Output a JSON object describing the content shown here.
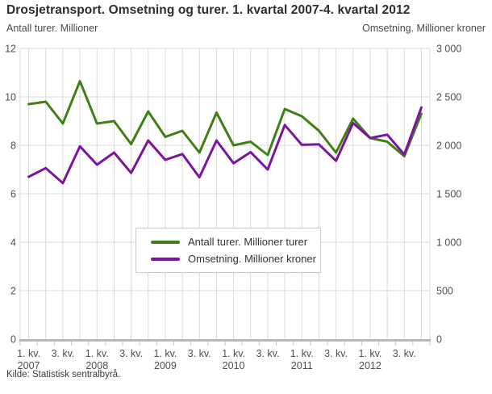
{
  "page": {
    "source": "Kilde: Statistisk sentralbyrå."
  },
  "chart_data": {
    "type": "line",
    "title": "Drosjetransport. Omsetning og turer. 1. kvartal 2007-4. kvartal 2012",
    "grid": true,
    "legend_position": "bottom-center-inside",
    "left_axis": {
      "label": "Antall turer. Millioner",
      "min": 0,
      "max": 12,
      "tick_step": 2,
      "ticks": [
        "12",
        "10",
        "8",
        "6",
        "4",
        "2",
        "0"
      ]
    },
    "right_axis": {
      "label": "Omsetning. Millioner kroner",
      "min": 0,
      "max": 3000,
      "tick_step": 500,
      "ticks": [
        "3 000",
        "2 500",
        "2 000",
        "1 500",
        "1 000",
        "500",
        "0"
      ]
    },
    "categories": [
      "1. kv. 2007",
      "2. kv. 2007",
      "3. kv. 2007",
      "4. kv. 2007",
      "1. kv. 2008",
      "2. kv. 2008",
      "3. kv. 2008",
      "4. kv. 2008",
      "1. kv. 2009",
      "2. kv. 2009",
      "3. kv. 2009",
      "4. kv. 2009",
      "1. kv. 2010",
      "2. kv. 2010",
      "3. kv. 2010",
      "4. kv. 2010",
      "1. kv. 2011",
      "2. kv. 2011",
      "3. kv. 2011",
      "4. kv. 2011",
      "1. kv. 2012",
      "2. kv. 2012",
      "3. kv. 2012",
      "4. kv. 2012"
    ],
    "x_labels": [
      {
        "quarter": "1. kv.",
        "year": "2007"
      },
      {
        "quarter": "3. kv.",
        "year": ""
      },
      {
        "quarter": "1. kv.",
        "year": "2008"
      },
      {
        "quarter": "3. kv.",
        "year": ""
      },
      {
        "quarter": "1. kv.",
        "year": "2009"
      },
      {
        "quarter": "3. kv.",
        "year": ""
      },
      {
        "quarter": "1. kv.",
        "year": "2010"
      },
      {
        "quarter": "3. kv.",
        "year": ""
      },
      {
        "quarter": "1. kv.",
        "year": "2011"
      },
      {
        "quarter": "3. kv.",
        "year": ""
      },
      {
        "quarter": "1. kv.",
        "year": "2012"
      },
      {
        "quarter": "3. kv.",
        "year": ""
      }
    ],
    "series": [
      {
        "name": "Antall turer. Millioner turer",
        "axis": "left",
        "color": "#3e7f16",
        "values": [
          9.7,
          9.8,
          8.9,
          10.65,
          8.9,
          9.0,
          8.05,
          9.4,
          8.35,
          8.6,
          7.7,
          9.35,
          8.0,
          8.15,
          7.6,
          9.5,
          9.2,
          8.6,
          7.7,
          9.1,
          8.3,
          8.15,
          7.55,
          9.3
        ]
      },
      {
        "name": "Omsetning. Millioner kroner",
        "axis": "right",
        "color": "#7b149e",
        "values": [
          1675,
          1765,
          1610,
          1990,
          1800,
          1925,
          1715,
          2050,
          1850,
          1910,
          1670,
          2050,
          1815,
          1930,
          1750,
          2210,
          2005,
          2010,
          1840,
          2230,
          2075,
          2110,
          1905,
          2390
        ]
      }
    ],
    "style": {
      "grid_color": "#d9d9d9",
      "axis_line_color": "#b8b8b8",
      "tick_color": "#c9c9c9",
      "tick_label_color": "#4f4f4f",
      "series_line_width": 3
    }
  }
}
